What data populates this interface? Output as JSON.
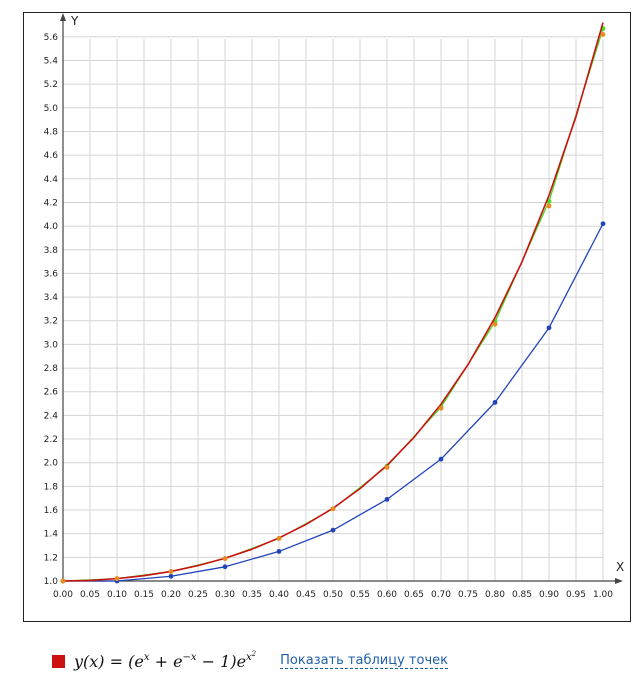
{
  "chart_data": {
    "type": "line",
    "xlabel": "X",
    "ylabel": "Y",
    "xlim": [
      0,
      1
    ],
    "ylim": [
      1.0,
      5.7
    ],
    "grid": true,
    "x_ticks": [
      "0.00",
      "0.05",
      "0.10",
      "0.15",
      "0.20",
      "0.25",
      "0.30",
      "0.35",
      "0.40",
      "0.45",
      "0.50",
      "0.55",
      "0.60",
      "0.65",
      "0.70",
      "0.75",
      "0.80",
      "0.85",
      "0.90",
      "0.95",
      "1.00"
    ],
    "y_ticks": [
      "1.0",
      "1.2",
      "1.4",
      "1.6",
      "1.8",
      "2.0",
      "2.2",
      "2.4",
      "2.6",
      "2.8",
      "3.0",
      "3.2",
      "3.4",
      "3.6",
      "3.8",
      "4.0",
      "4.2",
      "4.4",
      "4.6",
      "4.8",
      "5.0",
      "5.2",
      "5.4",
      "5.6"
    ],
    "series": [
      {
        "color": "#2244bb",
        "marker": true,
        "x": [
          0,
          0.1,
          0.2,
          0.3,
          0.4,
          0.5,
          0.6,
          0.7,
          0.8,
          0.9,
          1.0
        ],
        "y": [
          1.0,
          1.0,
          1.04,
          1.12,
          1.25,
          1.43,
          1.69,
          2.03,
          2.51,
          3.14,
          4.02
        ]
      },
      {
        "color": "#44dd22",
        "marker": true,
        "x": [
          0,
          0.1,
          0.2,
          0.3,
          0.4,
          0.5,
          0.6,
          0.7,
          0.8,
          0.9,
          1.0
        ],
        "y": [
          1.0,
          1.02,
          1.08,
          1.19,
          1.36,
          1.61,
          1.97,
          2.47,
          3.19,
          4.21,
          5.67
        ]
      },
      {
        "color": "#cc1111",
        "marker": false,
        "x": [
          0,
          0.05,
          0.1,
          0.15,
          0.2,
          0.25,
          0.3,
          0.35,
          0.4,
          0.45,
          0.5,
          0.55,
          0.6,
          0.65,
          0.7,
          0.75,
          0.8,
          0.85,
          0.9,
          0.95,
          1.0
        ],
        "y": [
          1.0,
          1.005,
          1.02,
          1.045,
          1.081,
          1.13,
          1.192,
          1.269,
          1.364,
          1.478,
          1.615,
          1.781,
          1.978,
          2.214,
          2.494,
          2.829,
          3.226,
          3.698,
          4.259,
          4.926,
          5.72
        ]
      },
      {
        "color": "#ee8822",
        "marker": true,
        "line": false,
        "x": [
          0,
          0.1,
          0.2,
          0.3,
          0.4,
          0.5,
          0.6,
          0.7,
          0.8,
          0.9,
          1.0
        ],
        "y": [
          1.0,
          1.02,
          1.08,
          1.19,
          1.36,
          1.61,
          1.96,
          2.46,
          3.17,
          4.17,
          5.62
        ]
      }
    ]
  },
  "legend": {
    "color": "#cc1111",
    "formula": {
      "lhs": "y(x) = (e",
      "sup_x": "x",
      "mid": " + e",
      "sup_negx": "−x",
      "tail": " − 1)e",
      "sup_x2_base": "x",
      "sup_x2_exp": "2"
    },
    "show_table_label": "Показать таблицу точек"
  }
}
